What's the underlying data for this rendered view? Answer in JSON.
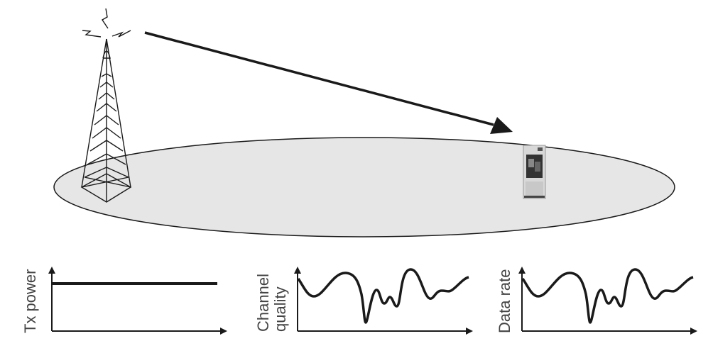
{
  "labels": {
    "tx_power": "Tx power",
    "channel_quality_line1": "Channel",
    "channel_quality_line2": "quality",
    "data_rate": "Data rate"
  },
  "colors": {
    "cell_fill": "#e6e6e6",
    "stroke": "#1a1a1a",
    "label_text": "#444444"
  }
}
